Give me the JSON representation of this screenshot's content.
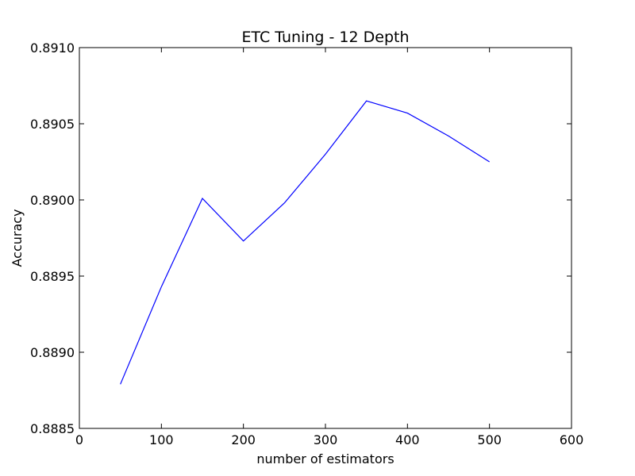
{
  "chart_data": {
    "type": "line",
    "title": "ETC Tuning - 12 Depth",
    "xlabel": "number of estimators",
    "ylabel": "Accuracy",
    "xlim": [
      0,
      600
    ],
    "ylim": [
      0.8885,
      0.891
    ],
    "xticks": [
      0,
      100,
      200,
      300,
      400,
      500,
      600
    ],
    "xtick_labels": [
      "0",
      "100",
      "200",
      "300",
      "400",
      "500",
      "600"
    ],
    "yticks": [
      0.8885,
      0.889,
      0.8895,
      0.89,
      0.8905,
      0.891
    ],
    "ytick_labels": [
      "0.8885",
      "0.8890",
      "0.8895",
      "0.8900",
      "0.8905",
      "0.8910"
    ],
    "grid": false,
    "series": [
      {
        "color": "#0000ff",
        "x": [
          50,
          100,
          150,
          200,
          250,
          300,
          350,
          400,
          450,
          500
        ],
        "y": [
          0.88879,
          0.88943,
          0.89001,
          0.88973,
          0.88998,
          0.8903,
          0.89065,
          0.89057,
          0.89042,
          0.89025
        ]
      }
    ]
  }
}
